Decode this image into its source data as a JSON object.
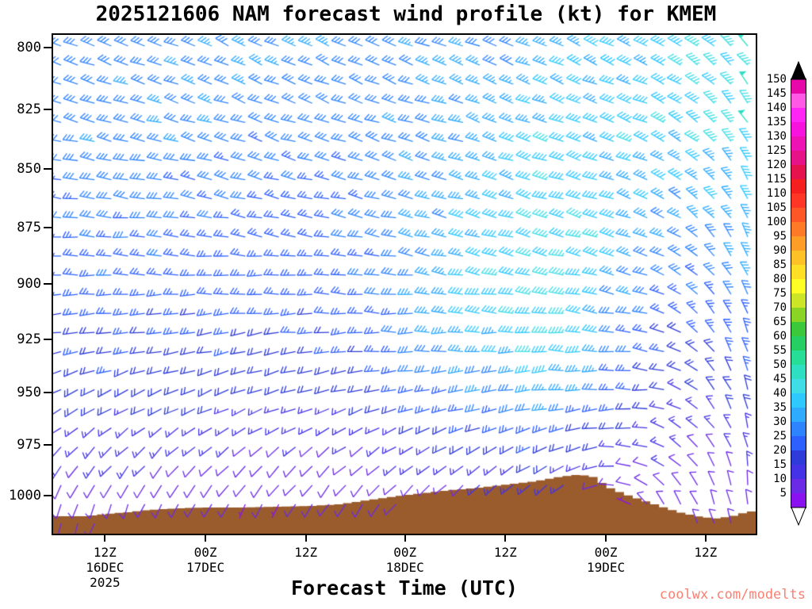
{
  "page": {
    "title": "2025121606 NAM forecast wind profile (kt) for KMEM",
    "watermark": "coolwx.com/modelts"
  },
  "chart_data": {
    "type": "wind-barb-time-height",
    "title": "2025121606 NAM forecast wind profile (kt) for KMEM",
    "xlabel": "Forecast Time (UTC)",
    "units": "kt",
    "station": "KMEM",
    "model": "NAM",
    "run": "2025121606",
    "y_ticks_pressure": [
      800,
      825,
      850,
      875,
      900,
      925,
      950,
      975,
      1000
    ],
    "y_scale": "log-pressure",
    "x_ticks": [
      {
        "fraction": 0.076,
        "lines": [
          "12Z",
          "16DEC",
          "2025"
        ]
      },
      {
        "fraction": 0.219,
        "lines": [
          "00Z",
          "17DEC"
        ]
      },
      {
        "fraction": 0.362,
        "lines": [
          "12Z"
        ]
      },
      {
        "fraction": 0.503,
        "lines": [
          "00Z",
          "18DEC"
        ]
      },
      {
        "fraction": 0.646,
        "lines": [
          "12Z"
        ]
      },
      {
        "fraction": 0.789,
        "lines": [
          "00Z",
          "19DEC"
        ]
      },
      {
        "fraction": 0.931,
        "lines": [
          "12Z"
        ]
      }
    ],
    "colorbar": {
      "levels": [
        5,
        10,
        15,
        20,
        25,
        30,
        35,
        40,
        45,
        50,
        55,
        60,
        65,
        70,
        75,
        80,
        85,
        90,
        95,
        100,
        105,
        110,
        115,
        120,
        125,
        130,
        135,
        140,
        145,
        150
      ],
      "colors": [
        "#8A12F0",
        "#6B2BE6",
        "#4433E6",
        "#2E3BD9",
        "#2E5FFF",
        "#2E84FF",
        "#2EAAFF",
        "#2EC9FF",
        "#3FDDE6",
        "#2EDFC2",
        "#26DE96",
        "#26CF63",
        "#3BC93B",
        "#8AD426",
        "#CCE526",
        "#FFFF26",
        "#FFE026",
        "#FFC226",
        "#FF9E26",
        "#FF7A26",
        "#FF5626",
        "#FF3626",
        "#F51F1F",
        "#E6124D",
        "#E61287",
        "#EE12B5",
        "#F712DE",
        "#FF26F5",
        "#FF59E6",
        "#E608A8"
      ],
      "arrow_top_color": "#000000",
      "arrow_bottom_color": "#FFFFFF"
    },
    "wind_grid": {
      "comment_time_fractions_span": "06Z 16DEC to 18Z 19DEC",
      "time_fractions": [
        0,
        0.1429,
        0.2857,
        0.4286,
        0.5714,
        0.7143,
        0.8571,
        1.0
      ],
      "levels": [
        800,
        825,
        850,
        875,
        900,
        925,
        950,
        975,
        1000
      ],
      "speed_kt": [
        [
          30,
          30,
          32,
          30,
          32,
          35,
          40,
          48
        ],
        [
          30,
          32,
          30,
          30,
          32,
          38,
          40,
          46
        ],
        [
          28,
          30,
          28,
          28,
          33,
          42,
          38,
          42
        ],
        [
          25,
          28,
          25,
          26,
          35,
          45,
          33,
          38
        ],
        [
          25,
          25,
          25,
          25,
          38,
          45,
          28,
          32
        ],
        [
          22,
          22,
          22,
          22,
          35,
          42,
          24,
          27
        ],
        [
          20,
          20,
          18,
          18,
          28,
          35,
          20,
          22
        ],
        [
          15,
          15,
          12,
          12,
          18,
          22,
          15,
          15
        ],
        [
          8,
          8,
          8,
          8,
          10,
          12,
          10,
          10
        ]
      ],
      "direction_deg_from": [
        [
          290,
          290,
          295,
          295,
          290,
          292,
          295,
          320
        ],
        [
          285,
          285,
          290,
          290,
          288,
          290,
          293,
          325
        ],
        [
          280,
          280,
          285,
          285,
          285,
          288,
          290,
          330
        ],
        [
          275,
          275,
          280,
          280,
          282,
          285,
          288,
          335
        ],
        [
          270,
          270,
          270,
          275,
          278,
          280,
          285,
          340
        ],
        [
          260,
          260,
          260,
          265,
          270,
          272,
          280,
          345
        ],
        [
          245,
          245,
          250,
          255,
          260,
          262,
          275,
          348
        ],
        [
          225,
          225,
          230,
          235,
          240,
          245,
          290,
          352
        ],
        [
          200,
          205,
          210,
          215,
          220,
          225,
          320,
          355
        ]
      ]
    },
    "terrain": {
      "color": "#9A5C2C",
      "points_fx_heightpx": [
        [
          0.0,
          22
        ],
        [
          0.04,
          22
        ],
        [
          0.07,
          25
        ],
        [
          0.1,
          27
        ],
        [
          0.13,
          30
        ],
        [
          0.17,
          32
        ],
        [
          0.21,
          33
        ],
        [
          0.26,
          33
        ],
        [
          0.31,
          34
        ],
        [
          0.36,
          35
        ],
        [
          0.4,
          37
        ],
        [
          0.44,
          42
        ],
        [
          0.48,
          47
        ],
        [
          0.52,
          51
        ],
        [
          0.56,
          55
        ],
        [
          0.6,
          58
        ],
        [
          0.64,
          62
        ],
        [
          0.68,
          66
        ],
        [
          0.71,
          71
        ],
        [
          0.735,
          74
        ],
        [
          0.76,
          73
        ],
        [
          0.775,
          64
        ],
        [
          0.79,
          56
        ],
        [
          0.81,
          49
        ],
        [
          0.83,
          43
        ],
        [
          0.85,
          37
        ],
        [
          0.87,
          31
        ],
        [
          0.89,
          26
        ],
        [
          0.91,
          22
        ],
        [
          0.935,
          19
        ],
        [
          0.96,
          22
        ],
        [
          0.98,
          27
        ],
        [
          1.0,
          30
        ]
      ]
    }
  }
}
